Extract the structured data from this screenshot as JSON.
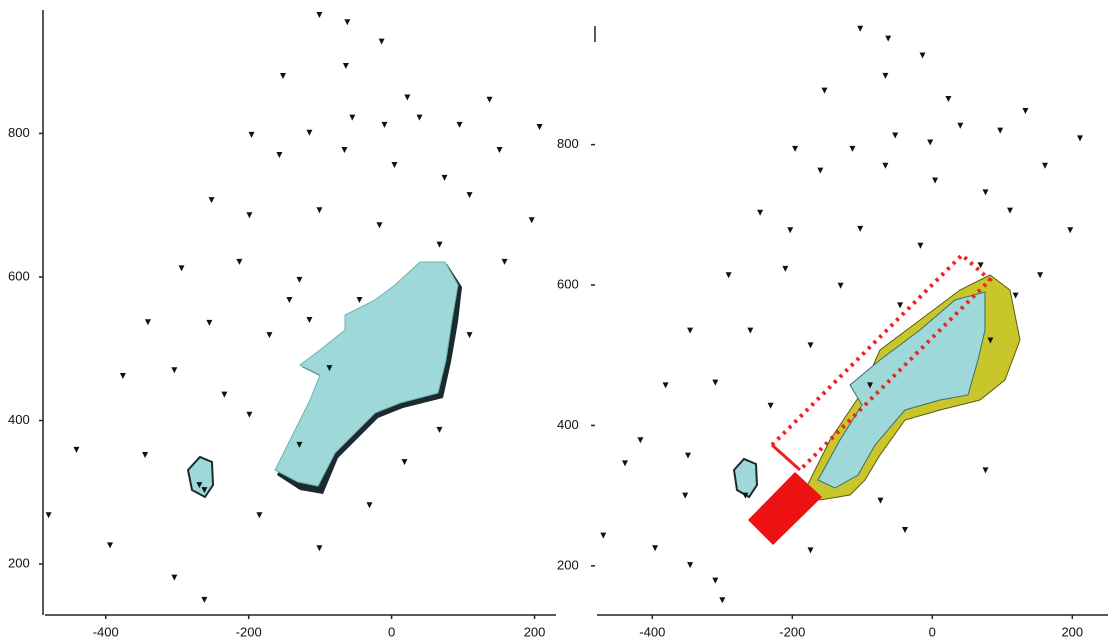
{
  "chart_data": [
    {
      "type": "scatter",
      "color": "#111111",
      "xlim": [
        -485,
        230
      ],
      "ylim": [
        129,
        972
      ],
      "xticks": [
        -400,
        -200,
        0,
        200
      ],
      "yticks": [
        200,
        400,
        600,
        800
      ],
      "x": [
        -101,
        -62,
        -14,
        -152,
        -64,
        22,
        -196,
        -115,
        -55,
        -10,
        39,
        95,
        137,
        207,
        151,
        -157,
        -66,
        4,
        74,
        109,
        196,
        -252,
        -199,
        -101,
        -17,
        67,
        158,
        -294,
        -213,
        -129,
        -45,
        -341,
        -255,
        -171,
        -87,
        -376,
        -304,
        -234,
        -199,
        -129,
        -441,
        -345,
        -262,
        -185,
        -101,
        -480,
        -394,
        -304,
        -262,
        67,
        18,
        109,
        -31,
        -269,
        -143,
        -115
      ],
      "y": [
        965,
        955,
        928,
        880,
        894,
        850,
        798,
        801,
        822,
        812,
        822,
        812,
        847,
        809,
        777,
        770,
        777,
        756,
        738,
        714,
        679,
        707,
        686,
        693,
        672,
        645,
        621,
        612,
        621,
        596,
        568,
        537,
        536,
        519,
        473,
        462,
        470,
        436,
        408,
        366,
        359,
        352,
        303,
        268,
        222,
        268,
        226,
        181,
        150,
        387,
        342,
        519,
        282,
        310,
        568,
        540
      ]
    },
    {
      "type": "scatter",
      "color": "#111111",
      "xlim": [
        -479,
        251
      ],
      "ylim": [
        130,
        969
      ],
      "xticks": [
        -400,
        -200,
        0,
        200
      ],
      "yticks": [
        200,
        400,
        600,
        800
      ],
      "x": [
        -103,
        -63,
        -14,
        -154,
        -67,
        23,
        -196,
        -114,
        -53,
        -3,
        40,
        97,
        133,
        211,
        161,
        -160,
        -67,
        4,
        76,
        111,
        197,
        -246,
        -203,
        -103,
        -17,
        69,
        154,
        -291,
        -210,
        -131,
        -46,
        -346,
        -260,
        -174,
        -89,
        -381,
        -310,
        -231,
        -417,
        -349,
        -267,
        -439,
        -353,
        -174,
        -470,
        -396,
        -346,
        -310,
        -300,
        76,
        -39,
        -74,
        83,
        119
      ],
      "y": [
        965,
        951,
        927,
        877,
        898,
        865,
        794,
        794,
        813,
        803,
        827,
        820,
        848,
        809,
        770,
        763,
        770,
        749,
        732,
        706,
        678,
        703,
        678,
        680,
        656,
        628,
        614,
        614,
        623,
        599,
        571,
        535,
        535,
        514,
        457,
        457,
        461,
        428,
        379,
        357,
        300,
        346,
        300,
        222,
        243,
        225,
        201,
        179,
        151,
        336,
        251,
        293,
        521,
        585
      ]
    }
  ]
}
